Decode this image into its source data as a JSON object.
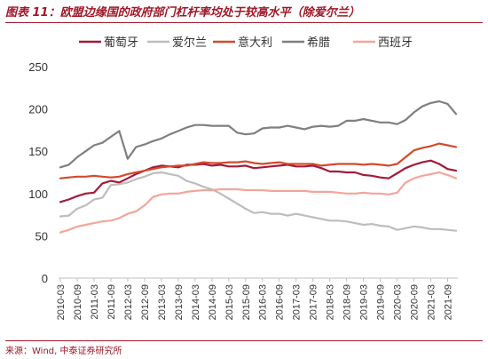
{
  "title": "图表 11：欧盟边缘国的政府部门杠杆率均处于较高水平（除爱尔兰）",
  "source": "来源：Wind, 中泰证券研究所",
  "chart_data": {
    "type": "line",
    "x": [
      "2010-03",
      "2010-06",
      "2010-09",
      "2010-12",
      "2011-03",
      "2011-06",
      "2011-09",
      "2011-12",
      "2012-03",
      "2012-06",
      "2012-09",
      "2012-12",
      "2013-03",
      "2013-06",
      "2013-09",
      "2013-12",
      "2014-03",
      "2014-06",
      "2014-09",
      "2014-12",
      "2015-03",
      "2015-06",
      "2015-09",
      "2015-12",
      "2016-03",
      "2016-06",
      "2016-09",
      "2016-12",
      "2017-03",
      "2017-06",
      "2017-09",
      "2017-12",
      "2018-03",
      "2018-06",
      "2018-09",
      "2018-12",
      "2019-03",
      "2019-06",
      "2019-09",
      "2019-12",
      "2020-03",
      "2020-06",
      "2020-09",
      "2020-12",
      "2021-03",
      "2021-06",
      "2021-09",
      "2021-12"
    ],
    "xticks": [
      "2010-03",
      "2010-09",
      "2011-03",
      "2011-09",
      "2012-03",
      "2012-09",
      "2013-03",
      "2013-09",
      "2014-03",
      "2014-09",
      "2015-03",
      "2015-09",
      "2016-03",
      "2016-09",
      "2017-03",
      "2017-09",
      "2018-03",
      "2018-09",
      "2019-03",
      "2019-09",
      "2020-03",
      "2020-09",
      "2021-03",
      "2021-09"
    ],
    "ylim": [
      0,
      250
    ],
    "yticks": [
      0,
      50,
      100,
      150,
      200,
      250
    ],
    "legend_position": "top",
    "series": [
      {
        "name": "葡萄牙",
        "color": "#a31a3b",
        "values": [
          90,
          93,
          97,
          100,
          101,
          112,
          115,
          113,
          118,
          123,
          127,
          131,
          133,
          132,
          131,
          134,
          134,
          135,
          133,
          134,
          132,
          132,
          133,
          130,
          131,
          132,
          133,
          134,
          132,
          132,
          133,
          130,
          126,
          126,
          125,
          125,
          122,
          121,
          119,
          118,
          124,
          130,
          134,
          137,
          139,
          135,
          129,
          127
        ]
      },
      {
        "name": "爱尔兰",
        "color": "#bdbdbd",
        "values": [
          73,
          74,
          82,
          86,
          93,
          95,
          110,
          111,
          113,
          117,
          120,
          124,
          125,
          123,
          121,
          115,
          112,
          108,
          105,
          100,
          94,
          88,
          82,
          77,
          78,
          76,
          76,
          74,
          76,
          74,
          72,
          70,
          68,
          68,
          67,
          65,
          63,
          64,
          62,
          61,
          57,
          59,
          61,
          60,
          58,
          58,
          57,
          56
        ]
      },
      {
        "name": "意大利",
        "color": "#d24a2c",
        "values": [
          118,
          119,
          120,
          120,
          121,
          120,
          119,
          120,
          123,
          125,
          127,
          129,
          131,
          132,
          133,
          133,
          135,
          137,
          136,
          136,
          137,
          137,
          138,
          136,
          135,
          136,
          137,
          135,
          135,
          135,
          135,
          133,
          134,
          135,
          135,
          135,
          134,
          135,
          134,
          133,
          135,
          143,
          151,
          154,
          156,
          159,
          157,
          155
        ]
      },
      {
        "name": "希腊",
        "color": "#7f7f7f",
        "values": [
          131,
          134,
          143,
          150,
          157,
          160,
          167,
          174,
          141,
          155,
          158,
          162,
          165,
          170,
          174,
          178,
          181,
          181,
          180,
          180,
          180,
          172,
          170,
          171,
          177,
          178,
          178,
          180,
          178,
          176,
          179,
          180,
          179,
          180,
          186,
          186,
          188,
          186,
          184,
          184,
          182,
          187,
          196,
          203,
          207,
          209,
          206,
          194
        ]
      },
      {
        "name": "西班牙",
        "color": "#f4a59a",
        "values": [
          54,
          57,
          61,
          63,
          65,
          67,
          68,
          71,
          76,
          79,
          86,
          96,
          99,
          100,
          100,
          102,
          103,
          104,
          104,
          105,
          105,
          105,
          104,
          104,
          104,
          103,
          103,
          103,
          103,
          103,
          102,
          102,
          102,
          101,
          100,
          100,
          101,
          100,
          100,
          99,
          101,
          113,
          118,
          121,
          123,
          125,
          122,
          118
        ]
      }
    ]
  }
}
